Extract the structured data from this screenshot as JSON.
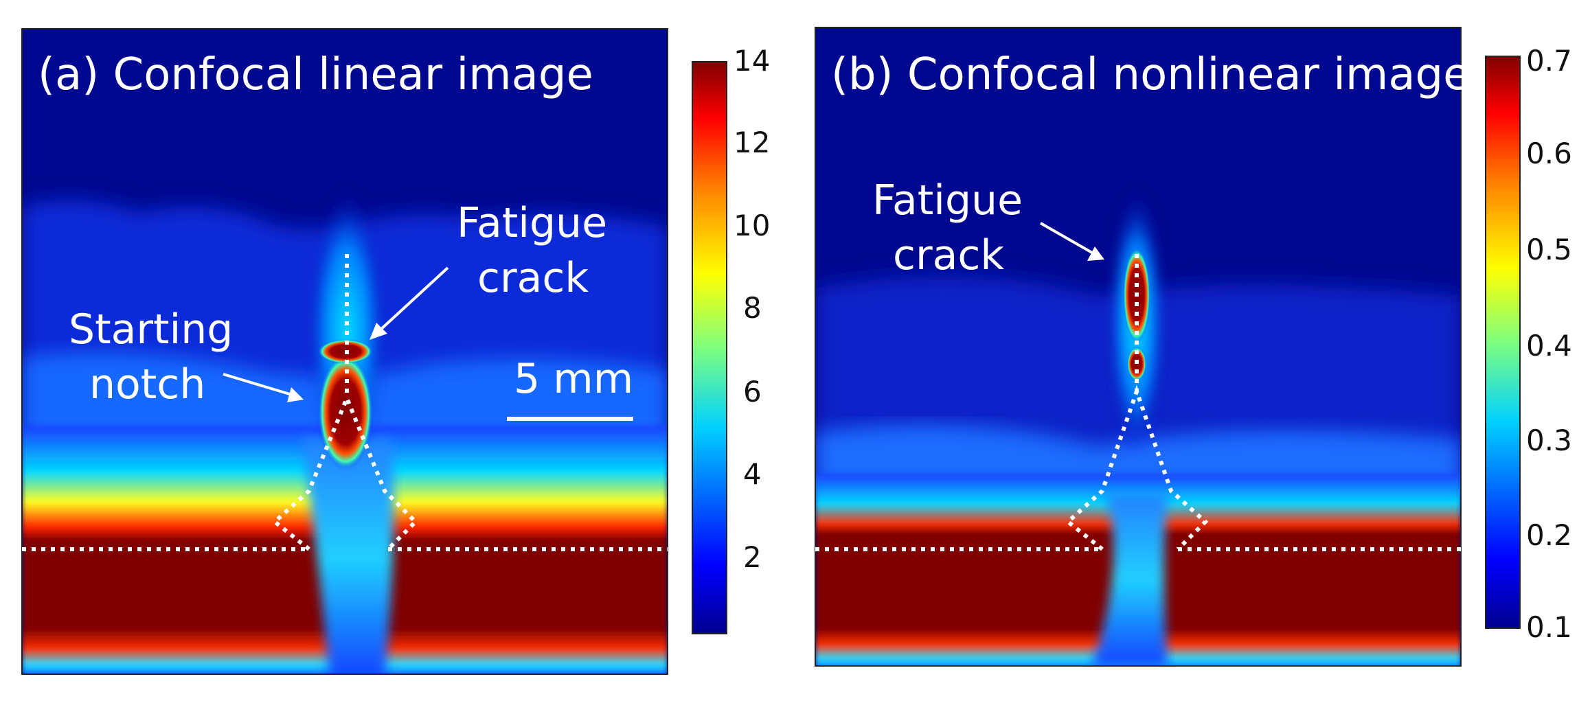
{
  "figure": {
    "panel_a": {
      "title": "(a) Confocal linear image",
      "colorbar_ticks": [
        "14",
        "12",
        "10",
        "8",
        "6",
        "4",
        "2"
      ],
      "colorbar_min": 0,
      "colorbar_max": 14,
      "annotations": {
        "fatigue_crack_line1": "Fatigue",
        "fatigue_crack_line2": "crack",
        "starting_notch_line1": "Starting",
        "starting_notch_line2": "notch",
        "scale_bar": "5 mm"
      }
    },
    "panel_b": {
      "title": "(b) Confocal nonlinear image",
      "colorbar_ticks": [
        "0.7",
        "0.6",
        "0.5",
        "0.4",
        "0.3",
        "0.2",
        "0.1"
      ],
      "colorbar_min": 0.1,
      "colorbar_max": 0.7,
      "annotations": {
        "fatigue_crack_line1": "Fatigue",
        "fatigue_crack_line2": "crack"
      }
    },
    "colormap": [
      "#00008f",
      "#0000ff",
      "#00c8ff",
      "#7fff7f",
      "#ffff00",
      "#ff7f00",
      "#ff0000",
      "#800000"
    ]
  }
}
